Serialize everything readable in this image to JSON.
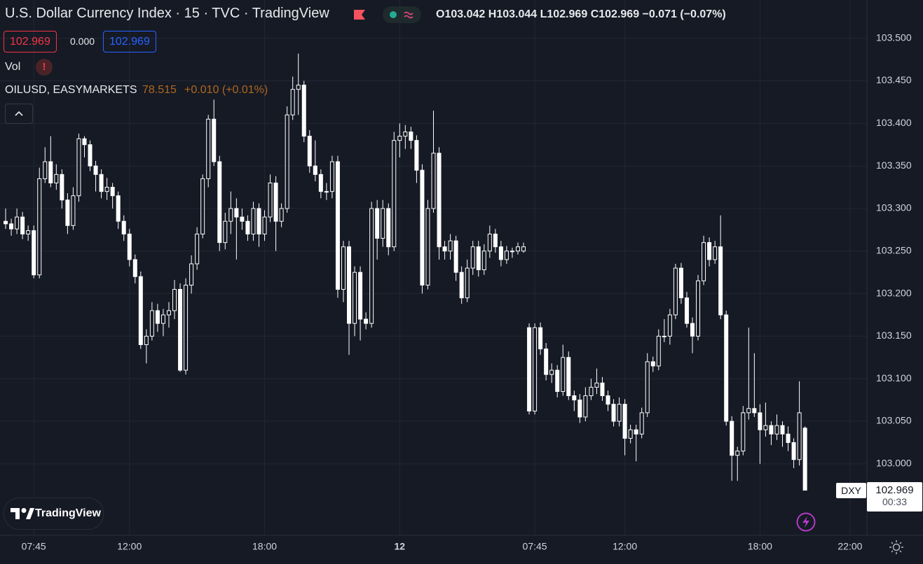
{
  "header": {
    "title": "U.S. Dollar Currency Index · 15 · TVC · TradingView",
    "ohlc_letters": [
      "O",
      "H",
      "L",
      "C"
    ],
    "change": "−0.071 (−0.07%)",
    "bid": "102.969",
    "spread": "0.000",
    "ask": "102.969",
    "vol": "Vol",
    "vol_alert": "!",
    "overlay_symbol": "OILUSD, EASYMARKETS",
    "overlay_price": "78.515",
    "overlay_change": "+0.010 (+0.01%)",
    "logo": "TradingView",
    "symbol_tag": "DXY",
    "countdown": "00:33"
  },
  "chart_data": {
    "type": "candlestick",
    "up_color": "#ffffff",
    "down_color": "#ffffff",
    "grid": true,
    "xlim": [
      -1,
      153
    ],
    "xticks": [
      {
        "value": 5,
        "label": "07:45"
      },
      {
        "value": 22,
        "label": "12:00"
      },
      {
        "value": 46,
        "label": "18:00"
      },
      {
        "value": 70,
        "label": "12",
        "bold": true
      },
      {
        "value": 94,
        "label": "07:45"
      },
      {
        "value": 110,
        "label": "12:00"
      },
      {
        "value": 134,
        "label": "18:00"
      },
      {
        "value": 150,
        "label": "22:00"
      }
    ],
    "ylim": [
      102.916,
      103.545
    ],
    "yticks": [
      {
        "value": 103.5,
        "label": "103.500"
      },
      {
        "value": 103.45,
        "label": "103.450"
      },
      {
        "value": 103.4,
        "label": "103.400"
      },
      {
        "value": 103.35,
        "label": "103.350"
      },
      {
        "value": 103.3,
        "label": "103.300"
      },
      {
        "value": 103.25,
        "label": "103.250"
      },
      {
        "value": 103.2,
        "label": "103.200"
      },
      {
        "value": 103.15,
        "label": "103.150"
      },
      {
        "value": 103.1,
        "label": "103.100"
      },
      {
        "value": 103.05,
        "label": "103.050"
      },
      {
        "value": 103,
        "label": "103.000"
      }
    ],
    "ohlc": [
      [
        103.285,
        103.3,
        103.276,
        103.282
      ],
      [
        103.282,
        103.288,
        103.268,
        103.276
      ],
      [
        103.276,
        103.3,
        103.27,
        103.29
      ],
      [
        103.29,
        103.296,
        103.264,
        103.27
      ],
      [
        103.27,
        103.28,
        103.262,
        103.274
      ],
      [
        103.274,
        103.28,
        103.218,
        103.222
      ],
      [
        103.222,
        103.348,
        103.218,
        103.335
      ],
      [
        103.335,
        103.372,
        103.33,
        103.355
      ],
      [
        103.355,
        103.385,
        103.325,
        103.33
      ],
      [
        103.33,
        103.352,
        103.322,
        103.34
      ],
      [
        103.34,
        103.346,
        103.3,
        103.31
      ],
      [
        103.31,
        103.318,
        103.27,
        103.28
      ],
      [
        103.28,
        103.325,
        103.275,
        103.315
      ],
      [
        103.315,
        103.388,
        103.308,
        103.382
      ],
      [
        103.382,
        103.385,
        103.36,
        103.375
      ],
      [
        103.375,
        103.38,
        103.344,
        103.35
      ],
      [
        103.35,
        103.356,
        103.32,
        103.34
      ],
      [
        103.34,
        103.346,
        103.312,
        103.32
      ],
      [
        103.32,
        103.336,
        103.31,
        103.325
      ],
      [
        103.325,
        103.33,
        103.3,
        103.315
      ],
      [
        103.315,
        103.32,
        103.276,
        103.285
      ],
      [
        103.285,
        103.292,
        103.262,
        103.27
      ],
      [
        103.27,
        103.276,
        103.232,
        103.24
      ],
      [
        103.24,
        103.246,
        103.212,
        103.22
      ],
      [
        103.22,
        103.226,
        103.135,
        103.14
      ],
      [
        103.14,
        103.158,
        103.118,
        103.15
      ],
      [
        103.15,
        103.19,
        103.145,
        103.18
      ],
      [
        103.18,
        103.188,
        103.155,
        103.165
      ],
      [
        103.165,
        103.182,
        103.15,
        103.175
      ],
      [
        103.175,
        103.19,
        103.16,
        103.18
      ],
      [
        103.18,
        103.216,
        103.17,
        103.205
      ],
      [
        103.205,
        103.212,
        103.108,
        103.11
      ],
      [
        103.11,
        103.218,
        103.105,
        103.21
      ],
      [
        103.21,
        103.245,
        103.2,
        103.235
      ],
      [
        103.235,
        103.278,
        103.228,
        103.27
      ],
      [
        103.27,
        103.34,
        103.265,
        103.335
      ],
      [
        103.335,
        103.41,
        103.325,
        103.405
      ],
      [
        103.405,
        103.428,
        103.35,
        103.355
      ],
      [
        103.355,
        103.362,
        103.25,
        103.26
      ],
      [
        103.26,
        103.295,
        103.252,
        103.285
      ],
      [
        103.285,
        103.32,
        103.27,
        103.3
      ],
      [
        103.3,
        103.312,
        103.24,
        103.29
      ],
      [
        103.29,
        103.3,
        103.275,
        103.285
      ],
      [
        103.285,
        103.292,
        103.262,
        103.27
      ],
      [
        103.27,
        103.308,
        103.262,
        103.3
      ],
      [
        103.3,
        103.306,
        103.255,
        103.27
      ],
      [
        103.27,
        103.298,
        103.262,
        103.29
      ],
      [
        103.29,
        103.34,
        103.284,
        103.33
      ],
      [
        103.33,
        103.338,
        103.25,
        103.285
      ],
      [
        103.285,
        103.306,
        103.278,
        103.3
      ],
      [
        103.3,
        103.42,
        103.295,
        103.41
      ],
      [
        103.41,
        103.455,
        103.404,
        103.44
      ],
      [
        103.44,
        103.482,
        103.41,
        103.445
      ],
      [
        103.445,
        103.45,
        103.378,
        103.385
      ],
      [
        103.385,
        103.392,
        103.342,
        103.35
      ],
      [
        103.35,
        103.38,
        103.332,
        103.34
      ],
      [
        103.34,
        103.346,
        103.312,
        103.32
      ],
      [
        103.32,
        103.33,
        103.31,
        103.32
      ],
      [
        103.32,
        103.362,
        103.312,
        103.355
      ],
      [
        103.355,
        103.362,
        103.195,
        103.205
      ],
      [
        103.205,
        103.262,
        103.19,
        103.255
      ],
      [
        103.255,
        103.262,
        103.128,
        103.165
      ],
      [
        103.165,
        103.232,
        103.15,
        103.225
      ],
      [
        103.225,
        103.232,
        103.145,
        103.17
      ],
      [
        103.17,
        103.178,
        103.158,
        103.165
      ],
      [
        103.165,
        103.308,
        103.16,
        103.3
      ],
      [
        103.3,
        103.31,
        103.24,
        103.265
      ],
      [
        103.265,
        103.31,
        103.255,
        103.3
      ],
      [
        103.3,
        103.306,
        103.245,
        103.255
      ],
      [
        103.255,
        103.39,
        103.25,
        103.38
      ],
      [
        103.38,
        103.4,
        103.36,
        103.385
      ],
      [
        103.385,
        103.398,
        103.37,
        103.39
      ],
      [
        103.39,
        103.396,
        103.37,
        103.38
      ],
      [
        103.38,
        103.386,
        103.33,
        103.345
      ],
      [
        103.345,
        103.352,
        103.2,
        103.21
      ],
      [
        103.21,
        103.31,
        103.205,
        103.3
      ],
      [
        103.3,
        103.415,
        103.295,
        103.365
      ],
      [
        103.365,
        103.372,
        103.24,
        103.255
      ],
      [
        103.255,
        103.262,
        103.24,
        103.25
      ],
      [
        103.25,
        103.27,
        103.24,
        103.262
      ],
      [
        103.262,
        103.268,
        103.215,
        103.225
      ],
      [
        103.225,
        103.232,
        103.188,
        103.195
      ],
      [
        103.195,
        103.24,
        103.19,
        103.23
      ],
      [
        103.23,
        103.262,
        103.222,
        103.255
      ],
      [
        103.255,
        103.262,
        103.22,
        103.228
      ],
      [
        103.228,
        103.258,
        103.222,
        103.25
      ],
      [
        103.25,
        103.28,
        103.242,
        103.27
      ],
      [
        103.27,
        103.276,
        103.248,
        103.255
      ],
      [
        103.255,
        103.262,
        103.232,
        103.24
      ],
      [
        103.24,
        103.256,
        103.235,
        103.25
      ],
      [
        103.25,
        103.254,
        103.242,
        103.25
      ],
      [
        103.25,
        103.26,
        103.246,
        103.255
      ],
      [
        103.25,
        103.26,
        103.248,
        103.255
      ],
      [
        103.16,
        103.165,
        103.058,
        103.062
      ],
      [
        103.062,
        103.165,
        103.058,
        103.16
      ],
      [
        103.16,
        103.166,
        103.128,
        103.135
      ],
      [
        103.135,
        103.142,
        103.098,
        103.105
      ],
      [
        103.105,
        103.118,
        103.095,
        103.11
      ],
      [
        103.11,
        103.116,
        103.078,
        103.085
      ],
      [
        103.085,
        103.14,
        103.08,
        103.125
      ],
      [
        103.125,
        103.132,
        103.075,
        103.08
      ],
      [
        103.08,
        103.086,
        103.062,
        103.075
      ],
      [
        103.075,
        103.082,
        103.048,
        103.055
      ],
      [
        103.055,
        103.09,
        103.05,
        103.08
      ],
      [
        103.08,
        103.1,
        103.075,
        103.09
      ],
      [
        103.09,
        103.112,
        103.082,
        103.095
      ],
      [
        103.095,
        103.102,
        103.074,
        103.08
      ],
      [
        103.08,
        103.086,
        103.062,
        103.07
      ],
      [
        103.07,
        103.076,
        103.044,
        103.05
      ],
      [
        103.05,
        103.078,
        103.044,
        103.07
      ],
      [
        103.07,
        103.076,
        103.01,
        103.03
      ],
      [
        103.03,
        103.046,
        103.024,
        103.04
      ],
      [
        103.04,
        103.046,
        103.003,
        103.035
      ],
      [
        103.035,
        103.066,
        103.03,
        103.06
      ],
      [
        103.06,
        103.13,
        103.055,
        103.12
      ],
      [
        103.12,
        103.126,
        103.108,
        103.115
      ],
      [
        103.115,
        103.158,
        103.11,
        103.15
      ],
      [
        103.15,
        103.17,
        103.143,
        103.15
      ],
      [
        103.15,
        103.182,
        103.14,
        103.175
      ],
      [
        103.175,
        103.235,
        103.17,
        103.23
      ],
      [
        103.23,
        103.236,
        103.188,
        103.195
      ],
      [
        103.195,
        103.202,
        103.16,
        103.165
      ],
      [
        103.165,
        103.172,
        103.13,
        103.15
      ],
      [
        103.15,
        103.222,
        103.145,
        103.215
      ],
      [
        103.215,
        103.268,
        103.21,
        103.26
      ],
      [
        103.26,
        103.266,
        103.232,
        103.24
      ],
      [
        103.24,
        103.262,
        103.235,
        103.255
      ],
      [
        103.255,
        103.292,
        103.17,
        103.175
      ],
      [
        103.175,
        103.18,
        103.045,
        103.05
      ],
      [
        103.05,
        103.056,
        102.98,
        103.01
      ],
      [
        103.01,
        103.02,
        102.98,
        103.015
      ],
      [
        103.015,
        103.068,
        103.01,
        103.06
      ],
      [
        103.06,
        103.16,
        103.052,
        103.065
      ],
      [
        103.065,
        103.13,
        103.055,
        103.06
      ],
      [
        103.06,
        103.07,
        103.0,
        103.04
      ],
      [
        103.04,
        103.072,
        103.032,
        103.045
      ],
      [
        103.045,
        103.05,
        103.022,
        103.035
      ],
      [
        103.035,
        103.058,
        103.028,
        103.045
      ],
      [
        103.045,
        103.05,
        103.02,
        103.035
      ],
      [
        103.035,
        103.044,
        103.015,
        103.025
      ],
      [
        103.025,
        103.03,
        102.995,
        103.005
      ],
      [
        103.005,
        103.097,
        102.998,
        103.06
      ],
      [
        103.042,
        103.044,
        102.969,
        102.969
      ]
    ]
  }
}
